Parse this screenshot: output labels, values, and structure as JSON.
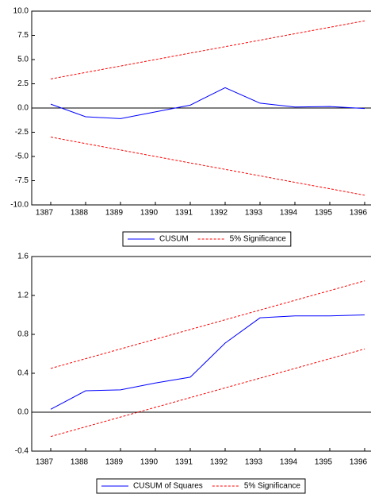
{
  "chart_data": [
    {
      "type": "line",
      "categories": [
        "1387",
        "1388",
        "1389",
        "1390",
        "1391",
        "1392",
        "1393",
        "1394",
        "1395",
        "1396"
      ],
      "series": [
        {
          "name": "CUSUM",
          "color": "#0000ff",
          "line_style": "solid",
          "values": [
            0.4,
            -0.9,
            -1.1,
            -0.4,
            0.3,
            2.1,
            0.5,
            0.1,
            0.15,
            -0.05
          ]
        },
        {
          "name": "5% Significance",
          "color": "#ff0000",
          "line_style": "dashed",
          "values": [
            3.0,
            3.67,
            4.33,
            5.0,
            5.67,
            6.33,
            7.0,
            7.67,
            8.33,
            9.0
          ]
        },
        {
          "name": "5% Significance",
          "color": "#ff0000",
          "line_style": "dashed",
          "values": [
            -3.0,
            -3.67,
            -4.33,
            -5.0,
            -5.67,
            -6.33,
            -7.0,
            -7.67,
            -8.33,
            -9.0
          ]
        }
      ],
      "ylim": [
        -10,
        10
      ],
      "yticks": [
        {
          "value": -10,
          "label": "-10.0"
        },
        -7.5,
        {
          "value": -5,
          "label": "-5.0"
        },
        -2.5,
        {
          "value": 0,
          "label": "0.0"
        },
        2.5,
        {
          "value": 5,
          "label": "5.0"
        },
        7.5,
        {
          "value": 10,
          "label": "10.0"
        }
      ],
      "zero_line": true
    },
    {
      "type": "line",
      "categories": [
        "1387",
        "1388",
        "1389",
        "1390",
        "1391",
        "1392",
        "1393",
        "1394",
        "1395",
        "1396"
      ],
      "series": [
        {
          "name": "CUSUM of Squares",
          "color": "#0000ff",
          "line_style": "solid",
          "values": [
            0.03,
            0.22,
            0.23,
            0.3,
            0.36,
            0.71,
            0.97,
            0.99,
            0.99,
            1.0
          ]
        },
        {
          "name": "5% Significance",
          "color": "#ff0000",
          "line_style": "dashed",
          "values": [
            0.45,
            0.55,
            0.65,
            0.75,
            0.85,
            0.95,
            1.05,
            1.15,
            1.25,
            1.35
          ]
        },
        {
          "name": "5% Significance",
          "color": "#ff0000",
          "line_style": "dashed",
          "values": [
            -0.25,
            -0.15,
            -0.05,
            0.05,
            0.15,
            0.25,
            0.35,
            0.45,
            0.55,
            0.65
          ]
        }
      ],
      "ylim": [
        -0.4,
        1.6
      ],
      "yticks": [
        -0.4,
        {
          "value": 0,
          "label": "0.0"
        },
        0.4,
        0.8,
        1.2,
        1.6
      ],
      "zero_line": true
    }
  ]
}
